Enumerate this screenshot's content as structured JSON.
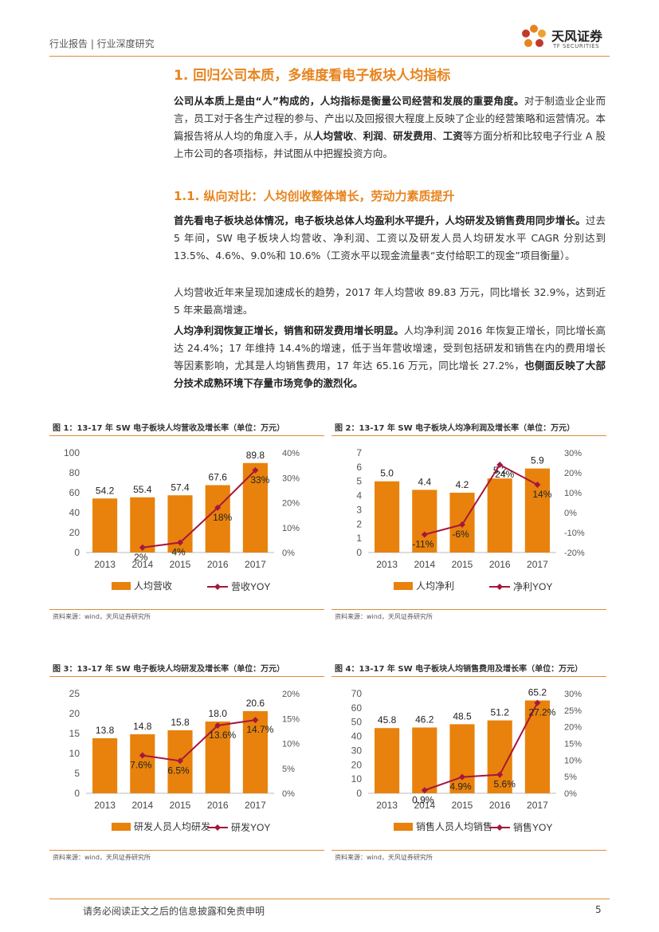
{
  "header": {
    "breadcrumb": "行业报告 | 行业深度研究"
  },
  "logo": {
    "name_cn": "天风证券",
    "name_en": "TF SECURITIES"
  },
  "section1": {
    "title": "1. 回归公司本质，多维度看电子板块人均指标",
    "para_bold": "公司从本质上是由“人”构成的，人均指标是衡量公司经营和发展的重要角度。",
    "para_rest_1": "对于制造业企业而言，员工对于各生产过程的参与、产出以及回报很大程度上反映了企业的经营策略和运营情况。本篇报告将从人均的角度入手，从",
    "kw1": "人均营收",
    "sep1": "、",
    "kw2": "利润",
    "sep2": "、",
    "kw3": "研发费用",
    "sep3": "、",
    "kw4": "工资",
    "para_rest_2": "等方面分析和比较电子行业 A 股上市公司的各项指标，并试图从中把握投资方向。"
  },
  "section11": {
    "title": "1.1. 纵向对比：人均创收整体增长，劳动力素质提升",
    "p1_bold": "首先看电子板块总体情况，电子板块总体人均盈利水平提升，人均研发及销售费用同步增长。",
    "p1_rest": "过去 5 年间，SW 电子板块人均营收、净利润、工资以及研发人员人均研发水平 CAGR 分别达到 13.5%、4.6%、9.0%和 10.6%（工资水平以现金流量表“支付给职工的现金”项目衡量）。",
    "p2": "人均营收近年来呈现加速成长的趋势，2017 年人均营收 89.83 万元，同比增长 32.9%，达到近 5 年来最高增速。",
    "p3_bold": "人均净利润恢复正增长，销售和研发费用增长明显。",
    "p3_rest": "人均净利润 2016 年恢复正增长，同比增长高达 24.4%；17 年维持 14.4%的增速，低于当年营收增速，受到包括研发和销售在内的费用增长等因素影响，尤其是人均销售费用，17 年达 65.16 万元，同比增长 27.2%，",
    "p3_bold2": "也侧面反映了大部分技术成熟环境下存量市场竞争的激烈化。"
  },
  "figures": [
    {
      "title": "图 1：13-17 年 SW 电子板块人均营收及增长率（单位：万元）",
      "source": "资料来源：wind，天风证券研究所"
    },
    {
      "title": "图 2：13-17 年 SW 电子板块人均净利润及增长率（单位：万元）",
      "source": "资料来源：wind，天风证券研究所"
    },
    {
      "title": "图 3：13-17 年 SW 电子板块人均研发及增长率（单位：万元）",
      "source": "资料来源：wind，天风证券研究所"
    },
    {
      "title": "图 4：13-17 年 SW 电子板块人均销售费用及增长率（单位：万元）",
      "source": "资料来源：wind，天风证券研究所"
    }
  ],
  "chart_data": [
    {
      "type": "bar",
      "categories": [
        "2013",
        "2014",
        "2015",
        "2016",
        "2017"
      ],
      "series": [
        {
          "name": "人均营收",
          "kind": "bar",
          "axis": "left",
          "values": [
            54.2,
            55.4,
            57.4,
            67.6,
            89.8
          ],
          "labels": [
            "54.2",
            "55.4",
            "57.4",
            "67.6",
            "89.8"
          ]
        },
        {
          "name": "营收YOY",
          "kind": "line",
          "axis": "right",
          "values": [
            null,
            2,
            4,
            18,
            33
          ],
          "labels": [
            "",
            "2%",
            "4%",
            "18%",
            "33%"
          ]
        }
      ],
      "left_ticks": [
        "0",
        "20",
        "40",
        "60",
        "80",
        "100"
      ],
      "ylim_left": [
        0,
        100
      ],
      "right_ticks": [
        "0%",
        "10%",
        "20%",
        "30%",
        "40%"
      ],
      "ylim_right": [
        0,
        40
      ]
    },
    {
      "type": "bar",
      "categories": [
        "2013",
        "2014",
        "2015",
        "2016",
        "2017"
      ],
      "series": [
        {
          "name": "人均净利",
          "kind": "bar",
          "axis": "left",
          "values": [
            5.0,
            4.4,
            4.2,
            5.2,
            5.9
          ],
          "labels": [
            "5.0",
            "4.4",
            "4.2",
            "5.2",
            "5.9"
          ]
        },
        {
          "name": "净利YOY",
          "kind": "line",
          "axis": "right",
          "values": [
            null,
            -11,
            -6,
            24,
            14
          ],
          "labels": [
            "",
            "-11%",
            "-6%",
            "24%",
            "14%"
          ]
        }
      ],
      "left_ticks": [
        "0",
        "1",
        "2",
        "3",
        "4",
        "5",
        "6",
        "7"
      ],
      "ylim_left": [
        0,
        7
      ],
      "right_ticks": [
        "-20%",
        "-10%",
        "0%",
        "10%",
        "20%",
        "30%"
      ],
      "ylim_right": [
        -20,
        30
      ]
    },
    {
      "type": "bar",
      "categories": [
        "2013",
        "2014",
        "2015",
        "2016",
        "2017"
      ],
      "series": [
        {
          "name": "研发人员人均研发",
          "kind": "bar",
          "axis": "left",
          "values": [
            13.8,
            14.8,
            15.8,
            18.0,
            20.6
          ],
          "labels": [
            "13.8",
            "14.8",
            "15.8",
            "18.0",
            "20.6"
          ]
        },
        {
          "name": "研发YOY",
          "kind": "line",
          "axis": "right",
          "values": [
            null,
            7.6,
            6.5,
            13.6,
            14.7
          ],
          "labels": [
            "",
            "7.6%",
            "6.5%",
            "13.6%",
            "14.7%"
          ]
        }
      ],
      "left_ticks": [
        "0",
        "5",
        "10",
        "15",
        "20",
        "25"
      ],
      "ylim_left": [
        0,
        25
      ],
      "right_ticks": [
        "0%",
        "5%",
        "10%",
        "15%",
        "20%"
      ],
      "ylim_right": [
        0,
        20
      ]
    },
    {
      "type": "bar",
      "categories": [
        "2013",
        "2014",
        "2015",
        "2016",
        "2017"
      ],
      "series": [
        {
          "name": "销售人员人均销售",
          "kind": "bar",
          "axis": "left",
          "values": [
            45.8,
            46.2,
            48.5,
            51.2,
            65.2
          ],
          "labels": [
            "45.8",
            "46.2",
            "48.5",
            "51.2",
            "65.2"
          ]
        },
        {
          "name": "销售YOY",
          "kind": "line",
          "axis": "right",
          "values": [
            null,
            0.9,
            4.9,
            5.6,
            27.2
          ],
          "labels": [
            "",
            "0.9%",
            "4.9%",
            "5.6%",
            "27.2%"
          ]
        }
      ],
      "left_ticks": [
        "0",
        "10",
        "20",
        "30",
        "40",
        "50",
        "60",
        "70"
      ],
      "ylim_left": [
        0,
        70
      ],
      "right_ticks": [
        "0%",
        "5%",
        "10%",
        "15%",
        "20%",
        "25%",
        "30%"
      ],
      "ylim_right": [
        0,
        30
      ]
    }
  ],
  "colors": {
    "bar": "#e8820c",
    "line": "#a5173d",
    "accent": "#e8841e"
  },
  "footer": {
    "disclaimer": "请务必阅读正文之后的信息披露和免责申明",
    "page": "5"
  }
}
